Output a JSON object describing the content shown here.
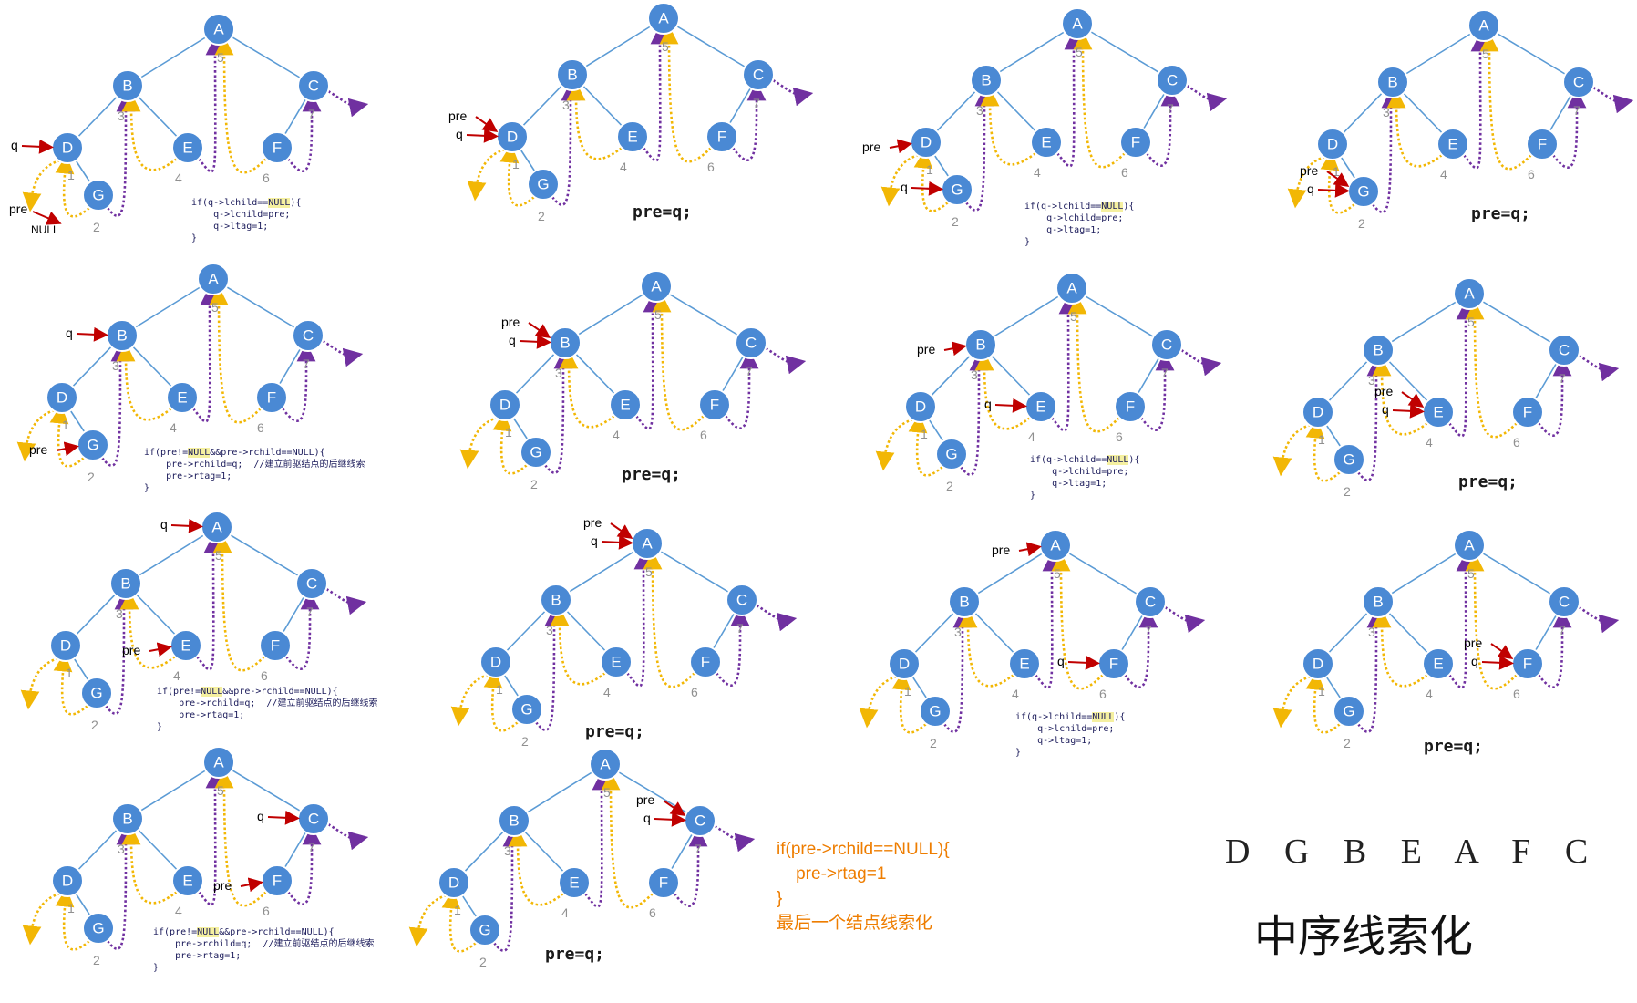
{
  "node_labels": {
    "A": "A",
    "B": "B",
    "C": "C",
    "D": "D",
    "E": "E",
    "F": "F",
    "G": "G"
  },
  "thread_numbers": [
    "1",
    "2",
    "3",
    "4",
    "5",
    "6",
    "7"
  ],
  "pointer_labels": {
    "q": "q",
    "pre": "pre",
    "null": "NULL"
  },
  "code": {
    "ltag_block": [
      "if(q->lchild==NULL){",
      "    q->lchild=pre;",
      "    q->ltag=1;",
      "}"
    ],
    "rtag_block": [
      "if(pre!=NULL&&pre->rchild==NULL){",
      "    pre->rchild=q;  //建立前驱结点的后继线索",
      "    pre->rtag=1;",
      "}"
    ],
    "pre_assign": "pre=q;",
    "final": [
      "if(pre->rchild==NULL){",
      "    pre->rtag=1",
      "}",
      "最后一个结点线索化"
    ]
  },
  "sequence": "D G B E A F C",
  "title": "中序线索化",
  "colors": {
    "node": "#4a89d4",
    "edge": "#5b9bd5",
    "left_thread": "#f2b705",
    "right_thread": "#7030a0",
    "pointer": "#c00000",
    "final_code": "#ee7d00"
  },
  "panels": [
    {
      "q": "D",
      "pre": "NULL",
      "code": "ltag"
    },
    {
      "q": "D",
      "pre": "D",
      "code": "pre"
    },
    {
      "q": "G",
      "pre": "D",
      "code": "ltag"
    },
    {
      "q": "G",
      "pre": "G",
      "code": "pre"
    },
    {
      "q": "B",
      "pre": "G",
      "code": "rtag"
    },
    {
      "q": "B",
      "pre": "B",
      "code": "pre"
    },
    {
      "q": "E",
      "pre": "B",
      "code": "ltag"
    },
    {
      "q": "E",
      "pre": "E",
      "code": "pre"
    },
    {
      "q": "A",
      "pre": "E",
      "code": "rtag"
    },
    {
      "q": "A",
      "pre": "A",
      "code": "pre"
    },
    {
      "q": "F",
      "pre": "A",
      "code": "ltag"
    },
    {
      "q": "F",
      "pre": "F",
      "code": "pre"
    },
    {
      "q": "C",
      "pre": "F",
      "code": "rtag"
    },
    {
      "q": "C",
      "pre": "C",
      "code": "pre"
    }
  ]
}
